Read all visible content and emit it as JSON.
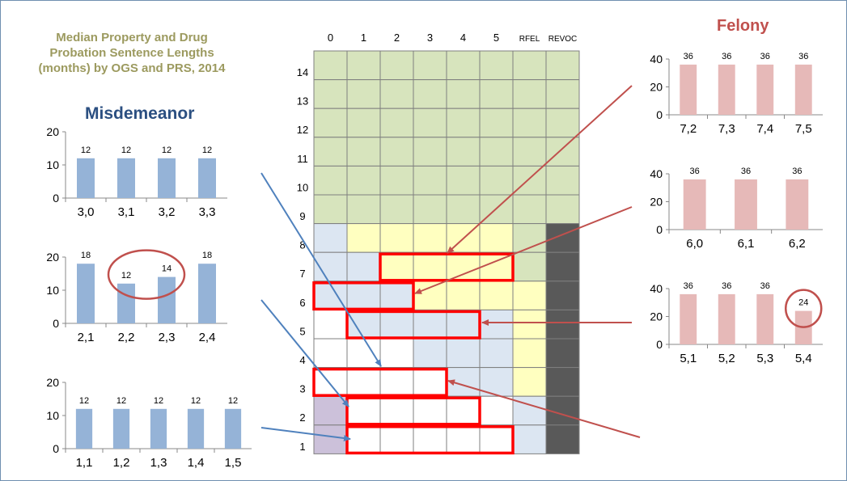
{
  "heading": "Median Property and Drug\nProbation Sentence Lengths\n(months) by OGS and PRS, 2014",
  "misdemeanor_label": "Misdemeanor",
  "felony_label": "Felony",
  "colors": {
    "misdemeanor_bar": "#95b3d7",
    "felony_bar": "#e6b9b8",
    "highlight_box": "#ff0000",
    "circle": "#c0504d",
    "blue_arrow": "#4f81bd",
    "red_arrow": "#c0504d",
    "grid_green": "#d7e4bd",
    "grid_yellow": "#ffffc0",
    "grid_blue": "#dce6f2",
    "grid_purple": "#ccc1da",
    "grid_dark": "#595959",
    "grid_white": "#ffffff"
  },
  "chart_data": [
    {
      "id": "misd-1",
      "type": "bar",
      "categories": [
        "3,0",
        "3,1",
        "3,2",
        "3,3"
      ],
      "values": [
        12,
        12,
        12,
        12
      ],
      "ylim": [
        0,
        20
      ],
      "yticks": [
        0,
        10,
        20
      ],
      "color_key": "misdemeanor_bar",
      "circled": []
    },
    {
      "id": "misd-2",
      "type": "bar",
      "categories": [
        "2,1",
        "2,2",
        "2,3",
        "2,4"
      ],
      "values": [
        18,
        12,
        14,
        18
      ],
      "ylim": [
        0,
        20
      ],
      "yticks": [
        0,
        10,
        20
      ],
      "color_key": "misdemeanor_bar",
      "circled": [
        1,
        2
      ]
    },
    {
      "id": "misd-3",
      "type": "bar",
      "categories": [
        "1,1",
        "1,2",
        "1,3",
        "1,4",
        "1,5"
      ],
      "values": [
        12,
        12,
        12,
        12,
        12
      ],
      "ylim": [
        0,
        20
      ],
      "yticks": [
        0,
        10,
        20
      ],
      "color_key": "misdemeanor_bar",
      "circled": []
    },
    {
      "id": "fel-1",
      "type": "bar",
      "categories": [
        "7,2",
        "7,3",
        "7,4",
        "7,5"
      ],
      "values": [
        36,
        36,
        36,
        36
      ],
      "ylim": [
        0,
        40
      ],
      "yticks": [
        0,
        20,
        40
      ],
      "color_key": "felony_bar",
      "circled": []
    },
    {
      "id": "fel-2",
      "type": "bar",
      "categories": [
        "6,0",
        "6,1",
        "6,2"
      ],
      "values": [
        36,
        36,
        36
      ],
      "ylim": [
        0,
        40
      ],
      "yticks": [
        0,
        20,
        40
      ],
      "color_key": "felony_bar",
      "circled": []
    },
    {
      "id": "fel-3",
      "type": "bar",
      "categories": [
        "5,1",
        "5,2",
        "5,3",
        "5,4"
      ],
      "values": [
        36,
        36,
        36,
        24
      ],
      "ylim": [
        0,
        40
      ],
      "yticks": [
        0,
        20,
        40
      ],
      "color_key": "felony_bar",
      "circled": [
        3
      ]
    }
  ],
  "grid": {
    "columns": [
      "0",
      "1",
      "2",
      "3",
      "4",
      "5",
      "RFEL",
      "REVOC"
    ],
    "rows": [
      "14",
      "13",
      "12",
      "11",
      "10",
      "9",
      "8",
      "7",
      "6",
      "5",
      "4",
      "3",
      "2",
      "1"
    ],
    "cells": [
      "GGGGGGGG",
      "GGGGGGGG",
      "GGGGGGGG",
      "GGGGGGGG",
      "GGGGGGGG",
      "GGGGGGGG",
      "BYYYYYGD",
      "BBYYYYGD",
      "BBBYYYYD",
      "WBBBBBYD",
      "WWWBBBYD",
      "WWWWBBYD",
      "PWWWWWBD",
      "PWWWWWBD"
    ],
    "cell_key": {
      "G": "grid_green",
      "Y": "grid_yellow",
      "B": "grid_blue",
      "W": "grid_white",
      "P": "grid_purple",
      "D": "grid_dark"
    },
    "highlights": [
      {
        "row": "7",
        "from_col": 2,
        "to_col": 5
      },
      {
        "row": "6",
        "from_col": 0,
        "to_col": 2
      },
      {
        "row": "5",
        "from_col": 1,
        "to_col": 4
      },
      {
        "row": "3",
        "from_col": 0,
        "to_col": 3
      },
      {
        "row": "2",
        "from_col": 1,
        "to_col": 4
      },
      {
        "row": "1",
        "from_col": 1,
        "to_col": 5
      }
    ]
  }
}
